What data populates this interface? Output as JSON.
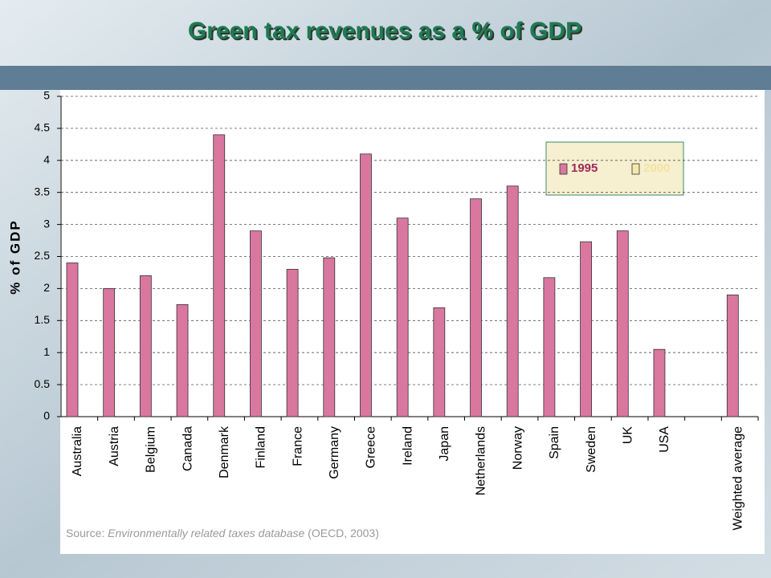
{
  "chart_data": {
    "type": "bar",
    "title": "Green tax revenues as a % of GDP",
    "ylabel": "% of GDP",
    "categories": [
      "Australia",
      "Austria",
      "Belgium",
      "Canada",
      "Denmark",
      "Finland",
      "France",
      "Germany",
      "Greece",
      "Ireland",
      "Japan",
      "Netherlands",
      "Norway",
      "Spain",
      "Sweden",
      "UK",
      "USA",
      null,
      "Weighted average"
    ],
    "series": [
      {
        "name": "1995",
        "color": "#d9779f",
        "values": [
          2.4,
          2.0,
          2.2,
          1.75,
          4.4,
          2.9,
          2.3,
          2.48,
          4.1,
          3.1,
          1.7,
          3.4,
          3.6,
          2.17,
          2.73,
          2.9,
          1.05,
          null,
          1.9
        ]
      },
      {
        "name": "2000",
        "color": "#f3e9a8",
        "values": [
          null,
          null,
          null,
          null,
          null,
          null,
          null,
          null,
          null,
          null,
          null,
          null,
          null,
          null,
          null,
          null,
          null,
          null,
          null
        ]
      }
    ],
    "ylim": [
      0,
      5
    ],
    "yticks": [
      0,
      0.5,
      1,
      1.5,
      2,
      2.5,
      3,
      3.5,
      4,
      4.5,
      5
    ],
    "grid": true,
    "source": {
      "prefix": "Source: ",
      "title": "Environmentally related taxes database",
      "suffix": " (OECD, 2003)"
    }
  }
}
